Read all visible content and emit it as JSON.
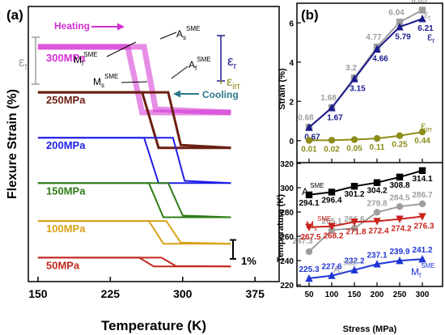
{
  "panels": {
    "a_label": "(a)",
    "b_label": "(b)"
  },
  "chart_data": [
    {
      "type": "line",
      "panel": "(a)",
      "xlabel": "Temperature (K)",
      "ylabel": "Flexure Strain (%)",
      "xlim": [
        140,
        400
      ],
      "xticks": [
        150,
        225,
        300,
        375
      ],
      "scale_bar_label": "1%",
      "scale_bar_percent": 1,
      "series": [
        {
          "name": "300MPa",
          "color": "#d22fd2",
          "hyst": [
            8.5,
            6.2
          ],
          "baseline": 6.4,
          "height": 2.6,
          "width": 7,
          "pattern": [
            [
              150,
              1
            ],
            [
              260,
              1
            ],
            [
              272,
              0.05
            ],
            [
              350,
              0
            ]
          ],
          "cooling": [
            [
              150,
              1
            ],
            [
              243,
              1
            ],
            [
              258,
              0
            ],
            [
              350,
              0
            ]
          ]
        },
        {
          "name": "250MPa",
          "color": "#6b1f12",
          "baseline": 5.0,
          "height": 2.2,
          "width": 3,
          "pattern": [
            [
              150,
              1
            ],
            [
              285,
              1
            ],
            [
              298,
              0.05
            ],
            [
              350,
              0
            ]
          ],
          "cooling": [
            [
              150,
              1
            ],
            [
              258,
              1
            ],
            [
              275,
              0
            ],
            [
              350,
              0
            ]
          ]
        },
        {
          "name": "200MPa",
          "color": "#1e1ee6",
          "baseline": 3.6,
          "height": 1.8,
          "width": 2,
          "pattern": [
            [
              150,
              1
            ],
            [
              290,
              1
            ],
            [
              302,
              0.05
            ],
            [
              350,
              0
            ]
          ],
          "cooling": [
            [
              150,
              1
            ],
            [
              260,
              1
            ],
            [
              275,
              0
            ],
            [
              350,
              0
            ]
          ]
        },
        {
          "name": "150MPa",
          "color": "#2e7d18",
          "baseline": 2.25,
          "height": 1.35,
          "width": 2,
          "pattern": [
            [
              150,
              1
            ],
            [
              285,
              1
            ],
            [
              300,
              0.05
            ],
            [
              350,
              0
            ]
          ],
          "cooling": [
            [
              150,
              1
            ],
            [
              265,
              1
            ],
            [
              280,
              0
            ],
            [
              350,
              0
            ]
          ]
        },
        {
          "name": "100MPa",
          "color": "#d9a217",
          "baseline": 1.2,
          "height": 0.9,
          "width": 2,
          "pattern": [
            [
              150,
              1
            ],
            [
              283,
              1
            ],
            [
              298,
              0.05
            ],
            [
              350,
              0
            ]
          ],
          "cooling": [
            [
              150,
              1
            ],
            [
              265,
              1
            ],
            [
              280,
              0
            ],
            [
              350,
              0
            ]
          ]
        },
        {
          "name": "50MPa",
          "color": "#c1281e",
          "baseline": 0.3,
          "height": 0.35,
          "width": 2,
          "pattern": [
            [
              150,
              1
            ],
            [
              278,
              1
            ],
            [
              293,
              0.05
            ],
            [
              350,
              0
            ]
          ],
          "cooling": [
            [
              150,
              1
            ],
            [
              255,
              1
            ],
            [
              270,
              0
            ],
            [
              350,
              0
            ]
          ]
        }
      ],
      "annotations": {
        "heating": "Heating",
        "cooling": "Cooling",
        "et": "ε",
        "et_sub": "t",
        "er": "ε",
        "er_sub": "r",
        "eirr": "ε",
        "eirr_sub": "irr",
        "As": "A",
        "As_sub": "s",
        "Af": "A",
        "Af_sub": "f",
        "Mf": "M",
        "Mf_sub": "f",
        "Ms": "M",
        "Ms_sub": "s",
        "sme": "SME"
      }
    },
    {
      "type": "line",
      "panel": "(b) top",
      "ylabel": "Strain (%)",
      "x": [
        50,
        100,
        150,
        200,
        250,
        300
      ],
      "ylim": [
        -1,
        7
      ],
      "yticks": [
        0,
        2,
        4,
        6
      ],
      "series": [
        {
          "name": "εt",
          "color": "#9e9e9e",
          "marker": "square",
          "values": [
            0.68,
            1.68,
            3.2,
            4.77,
            6.04,
            6.65
          ],
          "labels": [
            "0.68",
            "1.68",
            "3.2",
            "4.77",
            "6.04",
            "6.65"
          ]
        },
        {
          "name": "εr",
          "color": "#1a1a8c",
          "marker": "triangle",
          "values": [
            0.67,
            1.67,
            3.15,
            4.66,
            5.79,
            6.21
          ],
          "labels": [
            "0.67",
            "1.67",
            "3.15",
            "4.66",
            "5.79",
            "6.21"
          ]
        },
        {
          "name": "εirr",
          "color": "#8c8c1a",
          "marker": "circle",
          "values": [
            0.01,
            0.02,
            0.05,
            0.11,
            0.25,
            0.44
          ],
          "labels": [
            "0.01",
            "0.02",
            "0.05",
            "0.11",
            "0.25",
            "0.44"
          ]
        }
      ],
      "legend_text": {
        "et": "ε",
        "et_sub": "t",
        "er": "ε",
        "er_sub": "r",
        "eirr": "ε",
        "eirr_sub": "irr"
      }
    },
    {
      "type": "line",
      "panel": "(b) bottom",
      "xlabel": "Stress (MPa)",
      "ylabel": "Temperature (K)",
      "x": [
        50,
        100,
        150,
        200,
        250,
        300
      ],
      "xticks": [
        50,
        100,
        150,
        200,
        250,
        300
      ],
      "ylim": [
        220,
        320
      ],
      "yticks": [
        220,
        240,
        260,
        280,
        300,
        320
      ],
      "series": [
        {
          "name": "AfSME",
          "color": "#000000",
          "marker": "square",
          "values": [
            294.1,
            296.4,
            301.2,
            304.2,
            308.8,
            314.1
          ],
          "labels": [
            "294.1",
            "296.4",
            "301.2",
            "304.2",
            "308.8",
            "314.1"
          ]
        },
        {
          "name": "AsSME",
          "color": "#9e9e9e",
          "marker": "circle",
          "values": [
            247.3,
            265.1,
            266.6,
            279.8,
            284.5,
            286.7
          ],
          "labels": [
            "247.3",
            "265.1",
            "266.6",
            "279.8",
            "284.5",
            "286.7"
          ]
        },
        {
          "name": "MsSME",
          "color": "#c8231c",
          "marker": "triangle-down",
          "values": [
            267.5,
            268.2,
            271.8,
            272.4,
            274.2,
            276.3
          ],
          "labels": [
            "267.5",
            "268.2",
            "271.8",
            "272.4",
            "274.2",
            "276.3"
          ]
        },
        {
          "name": "MfSME",
          "color": "#1f35d6",
          "marker": "triangle",
          "values": [
            225.3,
            227.6,
            232.2,
            237.1,
            239.9,
            241.2
          ],
          "labels": [
            "225.3",
            "227.6",
            "232.2",
            "237.1",
            "239.9",
            "241.2"
          ]
        }
      ],
      "legend_text": {
        "Af": "A",
        "As": "A",
        "Ms": "M",
        "Mf": "M",
        "f": "f",
        "s": "s",
        "sme": "SME"
      }
    }
  ]
}
